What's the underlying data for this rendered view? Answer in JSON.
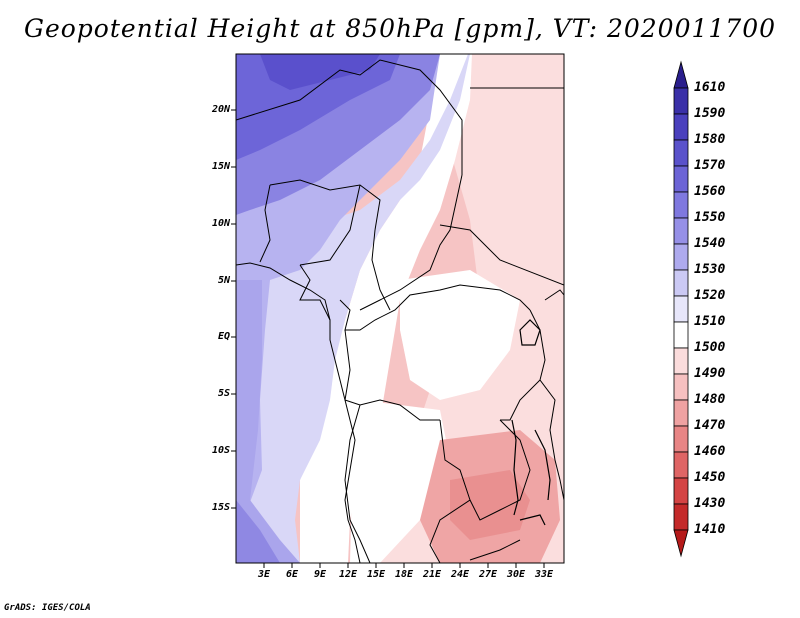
{
  "title": "Geopotential Height at 850hPa [gpm], VT: 2020011700",
  "credit": "GrADS: IGES/COLA",
  "map": {
    "lat_labels": [
      "20N",
      "15N",
      "10N",
      "5N",
      "EQ",
      "5S",
      "10S",
      "15S"
    ],
    "lon_labels": [
      "3E",
      "6E",
      "9E",
      "12E",
      "15E",
      "18E",
      "21E",
      "24E",
      "27E",
      "30E",
      "33E"
    ]
  },
  "colorbar": {
    "labels": [
      "1610",
      "1590",
      "1580",
      "1570",
      "1560",
      "1550",
      "1540",
      "1530",
      "1520",
      "1510",
      "1500",
      "1490",
      "1480",
      "1470",
      "1460",
      "1450",
      "1430",
      "1410"
    ],
    "colors": [
      "#2a1e8c",
      "#3a30a8",
      "#4a40bd",
      "#5a52cb",
      "#6c64d6",
      "#7f78df",
      "#9690e7",
      "#aeaaee",
      "#cbc9f4",
      "#e7e6fa",
      "#ffffff",
      "#fbdcdc",
      "#f6c0c0",
      "#efa2a2",
      "#e88585",
      "#df6565",
      "#d44444",
      "#c42a2a",
      "#b51a1a"
    ]
  },
  "colors": {
    "deep_blue": "#6a62d6",
    "mid_blue": "#9c96e8",
    "light_blue": "#d5d3f6",
    "white": "#ffffff",
    "light_pink": "#fadcdc",
    "pink": "#f4b9b9",
    "dark_pink": "#ec9c9c"
  }
}
